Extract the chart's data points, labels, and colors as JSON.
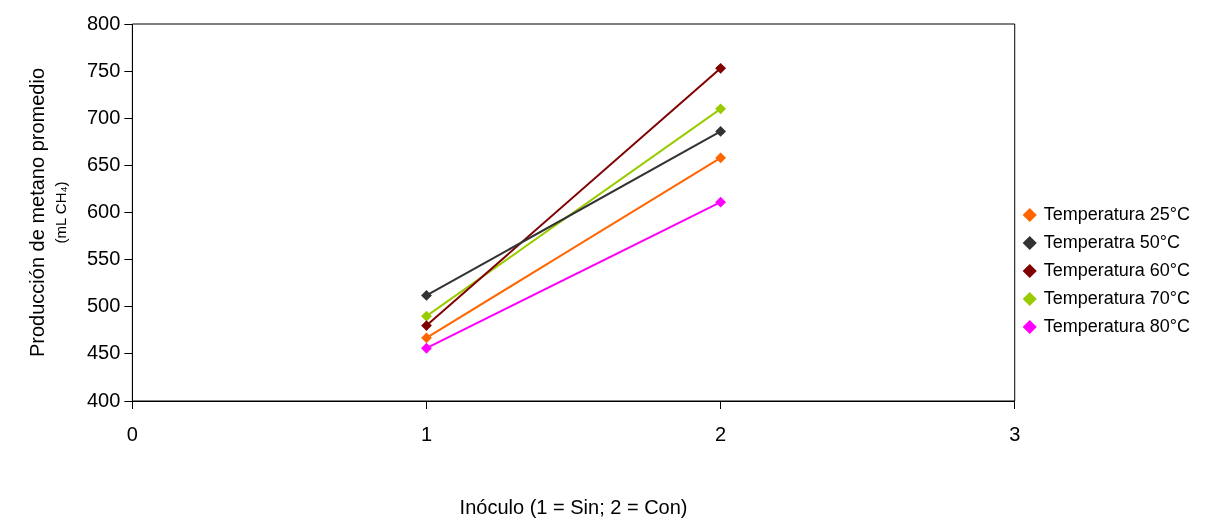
{
  "chart_data": {
    "type": "line",
    "xlabel": "Inóculo (1 = Sin; 2 = Con)",
    "ylabel": "Producción de metano promedio\n(mL CH₄)",
    "x": [
      1,
      2
    ],
    "xlim": [
      0,
      3
    ],
    "xticks": [
      0,
      1,
      2,
      3
    ],
    "ylim": [
      400,
      800
    ],
    "yticks": [
      400,
      450,
      500,
      550,
      600,
      650,
      700,
      750,
      800
    ],
    "grid": false,
    "legend": "right",
    "marker": "diamond",
    "line_style": "solid",
    "series": [
      {
        "name": "Temperatura 25°C",
        "color": "#ff6600",
        "values": [
          467,
          658
        ]
      },
      {
        "name": "Temperatra 50°C",
        "color": "#333333",
        "values": [
          512,
          686
        ]
      },
      {
        "name": "Temperatura 60°C",
        "color": "#800000",
        "values": [
          480,
          753
        ]
      },
      {
        "name": "Temperatura 70°C",
        "color": "#99cc00",
        "values": [
          490,
          710
        ]
      },
      {
        "name": "Temperatura 80°C",
        "color": "#ff00ff",
        "values": [
          456,
          611
        ]
      }
    ]
  }
}
